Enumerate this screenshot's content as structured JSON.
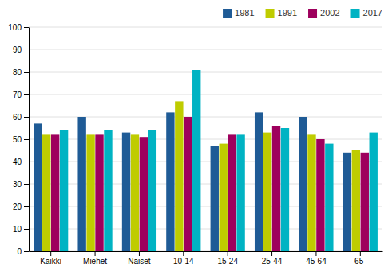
{
  "chart_data": {
    "type": "bar",
    "categories": [
      "Kaikki",
      "Miehet",
      "Naiset",
      "10-14",
      "15-24",
      "25-44",
      "45-64",
      "65-"
    ],
    "series": [
      {
        "name": "1981",
        "color": "#1f5b96",
        "values": [
          57,
          60,
          53,
          62,
          47,
          62,
          60,
          44
        ]
      },
      {
        "name": "1991",
        "color": "#bfcc00",
        "values": [
          52,
          52,
          52,
          67,
          48,
          53,
          52,
          45
        ]
      },
      {
        "name": "2002",
        "color": "#9e005d",
        "values": [
          52,
          52,
          51,
          60,
          52,
          56,
          50,
          44
        ]
      },
      {
        "name": "2017",
        "color": "#00b3c3",
        "values": [
          54,
          54,
          54,
          81,
          52,
          55,
          48,
          53
        ]
      }
    ],
    "ylim": [
      0,
      100
    ],
    "yticks": [
      0,
      10,
      20,
      30,
      40,
      50,
      60,
      70,
      80,
      90,
      100
    ],
    "grid": true,
    "legend": "upper right"
  }
}
